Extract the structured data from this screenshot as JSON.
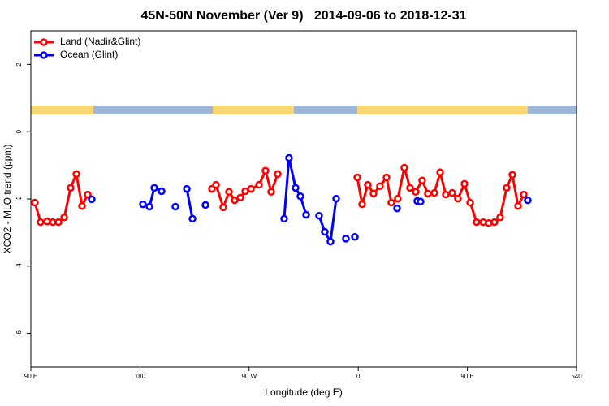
{
  "chart_data": {
    "type": "line",
    "title": "45N-50N November (Ver 9)   2014-09-06 to 2018-12-31",
    "xlabel": "Longitude (deg E)",
    "ylabel": "XCO2 - MLO trend (ppm)",
    "xlim": [
      90,
      540
    ],
    "xticks": [
      {
        "value": 90,
        "label": "90 E"
      },
      180,
      {
        "value": 270,
        "label": "90 W"
      },
      {
        "value": 360,
        "label": "0"
      },
      {
        "value": 450,
        "label": "90 E"
      },
      540
    ],
    "ylim": [
      -7,
      3
    ],
    "yticks": [
      -6,
      -4,
      -2,
      0,
      2
    ],
    "legend": "top-left",
    "series": [
      {
        "name": "Land (Nadir&Glint)",
        "color": "#ff0000",
        "x": [
          93.3,
          98.0,
          103.4,
          108.1,
          112.8,
          117.5,
          122.8,
          127.5,
          132.2,
          136.9,
          null,
          239.3,
          242.7,
          248.7,
          253.4,
          258.1,
          262.8,
          266.8,
          271.5,
          278.2,
          283.5,
          288.2,
          293.6,
          null,
          359.2,
          363.2,
          367.9,
          372.6,
          377.9,
          383.3,
          387.3,
          392.6,
          398.0,
          402.7,
          407.4,
          412.7,
          417.4,
          422.8,
          427.5,
          432.2,
          437.5,
          442.2,
          447.6,
          452.3,
          457.6,
          463.0,
          467.6,
          472.3,
          477.0,
          482.4,
          487.1,
          491.8,
          496.5
        ],
        "values": [
          -2.11,
          -2.69,
          -2.67,
          -2.69,
          -2.69,
          -2.55,
          -1.67,
          -1.26,
          -2.21,
          -1.87,
          null,
          -1.7,
          -1.58,
          -2.25,
          -1.79,
          -2.04,
          -1.96,
          -1.77,
          -1.7,
          -1.58,
          -1.16,
          -1.79,
          -1.26,
          null,
          -1.36,
          -2.16,
          -1.58,
          -1.84,
          -1.62,
          -1.36,
          -2.11,
          -1.99,
          -1.07,
          -1.67,
          -1.79,
          -1.45,
          -1.84,
          -1.82,
          -1.21,
          -1.87,
          -1.82,
          -1.99,
          -1.55,
          -2.11,
          -2.69,
          -2.69,
          -2.72,
          -2.69,
          -2.55,
          -1.67,
          -1.28,
          -2.21,
          -1.87
        ]
      },
      {
        "name": "Ocean (Glint)",
        "color": "#0000ff",
        "x": [
          140.2,
          null,
          182.4,
          187.8,
          191.8,
          197.8,
          null,
          209.2,
          null,
          218.6,
          223.3,
          null,
          234.0,
          null,
          298.9,
          302.9,
          308.3,
          312.3,
          317.0,
          null,
          327.7,
          332.4,
          337.1,
          341.8,
          null,
          349.8,
          null,
          357.2,
          null,
          392.0,
          null,
          408.7,
          411.4,
          null,
          499.8
        ],
        "values": [
          -2.01,
          null,
          -2.16,
          -2.23,
          -1.67,
          -1.77,
          null,
          -2.23,
          null,
          -1.7,
          -2.59,
          null,
          -2.18,
          null,
          -2.59,
          -0.78,
          -1.67,
          -1.92,
          -2.47,
          null,
          -2.5,
          -2.98,
          -3.27,
          -1.99,
          null,
          -3.18,
          null,
          -3.13,
          null,
          -2.28,
          null,
          -2.06,
          -2.08,
          null,
          -2.04
        ]
      }
    ]
  }
}
